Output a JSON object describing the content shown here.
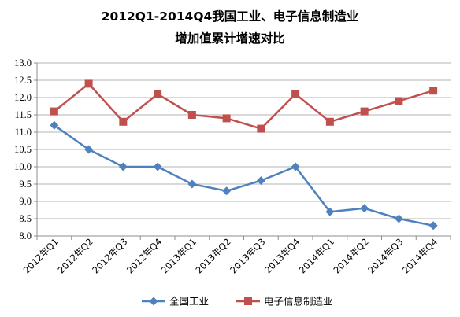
{
  "chart_data": {
    "type": "line",
    "title_line1": "2012Q1-2014Q4我国工业、电子信息制造业",
    "title_line2": "增加值累计增速对比",
    "categories": [
      "2012年Q1",
      "2012年Q2",
      "2012年Q3",
      "2012年Q4",
      "2013年Q1",
      "2013年Q2",
      "2013年Q3",
      "2013年Q4",
      "2014年Q1",
      "2014年Q2",
      "2014年Q3",
      "2014年Q4"
    ],
    "ylim": [
      8.0,
      13.0
    ],
    "yticks": [
      "8.0",
      "8.5",
      "9.0",
      "9.5",
      "10.0",
      "10.5",
      "11.0",
      "11.5",
      "12.0",
      "12.5",
      "13.0"
    ],
    "grid": true,
    "legend_position": "bottom",
    "series": [
      {
        "name": "全国工业",
        "color": "#4F81BD",
        "marker": "diamond",
        "values": [
          11.2,
          10.5,
          10.0,
          10.0,
          9.5,
          9.3,
          9.6,
          10.0,
          8.7,
          8.8,
          8.5,
          8.3
        ]
      },
      {
        "name": "电子信息制造业",
        "color": "#C0504D",
        "marker": "square",
        "values": [
          11.6,
          12.4,
          11.3,
          12.1,
          11.5,
          11.4,
          11.1,
          12.1,
          11.3,
          11.6,
          11.9,
          12.2
        ]
      }
    ]
  }
}
